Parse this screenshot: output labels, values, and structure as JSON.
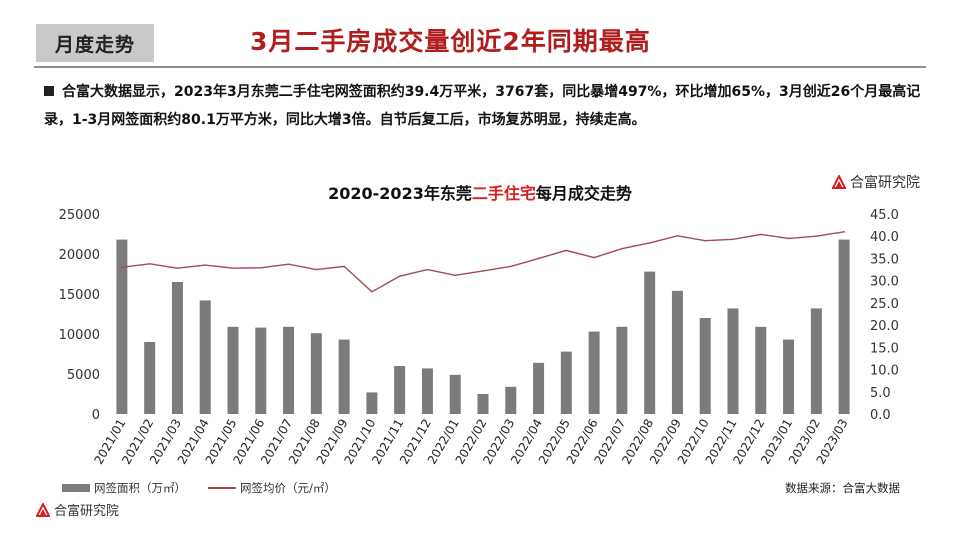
{
  "header": {
    "badge": "月度走势",
    "headline": "3月二手房成交量创近2年同期最高"
  },
  "summary": {
    "text": "合富大数据显示，2023年3月东莞二手住宅网签面积约39.4万平米，3767套，同比暴增497%，环比增加65%，3月创近26个月最高记录，1-3月网签面积约80.1万平方米，同比大增3倍。自节后复工后，市场复苏明显，持续走高。"
  },
  "brand": {
    "name": "合富研究院"
  },
  "chart_data": {
    "type": "bar",
    "title_parts": [
      "2020-2023年东莞",
      "二手住宅",
      "每月成交走势"
    ],
    "categories": [
      "2021/01",
      "2021/02",
      "2021/03",
      "2021/04",
      "2021/05",
      "2021/06",
      "2021/07",
      "2021/08",
      "2021/09",
      "2021/10",
      "2021/11",
      "2021/12",
      "2022/01",
      "2022/02",
      "2022/03",
      "2022/04",
      "2022/05",
      "2022/06",
      "2022/07",
      "2022/08",
      "2022/09",
      "2022/10",
      "2022/11",
      "2022/12",
      "2023/01",
      "2023/02",
      "2023/03"
    ],
    "series": [
      {
        "name": "网签面积（万㎡）",
        "type": "bar",
        "axis": "left",
        "color": "#7b7b7b",
        "values": [
          21800,
          9000,
          16500,
          14200,
          10900,
          10800,
          10900,
          10100,
          9300,
          2700,
          6000,
          5700,
          4900,
          2500,
          3400,
          6400,
          7800,
          10300,
          10900,
          17800,
          15400,
          12000,
          13200,
          10900,
          9300,
          13200,
          21800
        ]
      },
      {
        "name": "网签均价（元/㎡）",
        "type": "line",
        "axis": "right",
        "color": "#a44a55",
        "values": [
          33,
          33.8,
          32.8,
          33.5,
          32.8,
          32.9,
          33.7,
          32.5,
          33.2,
          27.5,
          31,
          32.5,
          31.2,
          32.2,
          33.2,
          35,
          36.8,
          35.2,
          37.2,
          38.5,
          40.1,
          39,
          39.3,
          40.4,
          39.5,
          40,
          41
        ]
      }
    ],
    "y_left": {
      "ticks": [
        0,
        5000,
        10000,
        15000,
        20000,
        25000
      ],
      "ylim": [
        0,
        25000
      ]
    },
    "y_right": {
      "ticks": [
        "0.0",
        "5.0",
        "10.0",
        "15.0",
        "20.0",
        "25.0",
        "30.0",
        "35.0",
        "40.0",
        "45.0"
      ],
      "ylim": [
        0,
        45
      ]
    },
    "grid": false,
    "legend": "bottom-left"
  },
  "source": "数据来源：合富大数据"
}
